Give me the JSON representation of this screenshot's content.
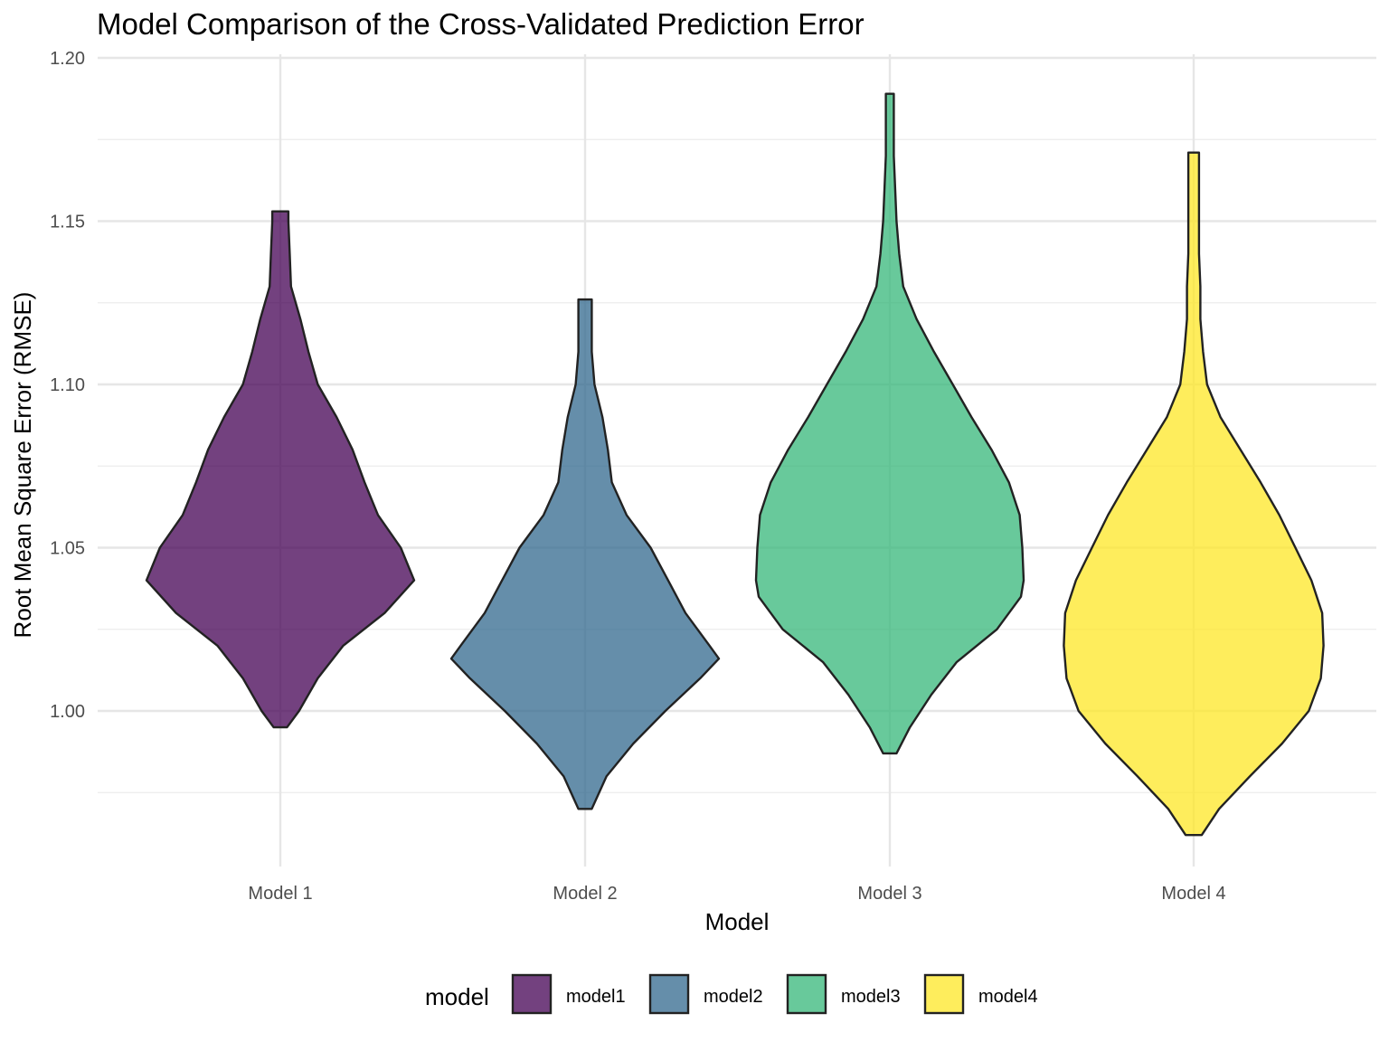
{
  "chart_data": {
    "type": "violin",
    "title": "Model Comparison of the Cross-Validated Prediction Error",
    "xlabel": "Model",
    "ylabel": "Root Mean Square Error (RMSE)",
    "categories": [
      "Model 1",
      "Model 2",
      "Model 3",
      "Model 4"
    ],
    "ylim": [
      0.953,
      1.2
    ],
    "y_ticks": [
      1.0,
      1.05,
      1.1,
      1.15,
      1.2
    ],
    "y_tick_labels": [
      "1.00",
      "1.05",
      "1.10",
      "1.15",
      "1.20"
    ],
    "grid": true,
    "legend": {
      "title": "model",
      "position": "bottom",
      "entries": [
        "model1",
        "model2",
        "model3",
        "model4"
      ]
    },
    "series": [
      {
        "name": "model1",
        "category": "Model 1",
        "color": "#440154",
        "min": 0.995,
        "max": 1.153,
        "profile": [
          [
            0.995,
            0.05
          ],
          [
            1.0,
            0.14
          ],
          [
            1.01,
            0.28
          ],
          [
            1.02,
            0.47
          ],
          [
            1.03,
            0.78
          ],
          [
            1.04,
            1.0
          ],
          [
            1.05,
            0.9
          ],
          [
            1.06,
            0.73
          ],
          [
            1.07,
            0.63
          ],
          [
            1.08,
            0.54
          ],
          [
            1.09,
            0.42
          ],
          [
            1.1,
            0.28
          ],
          [
            1.11,
            0.21
          ],
          [
            1.12,
            0.15
          ],
          [
            1.13,
            0.08
          ],
          [
            1.14,
            0.07
          ],
          [
            1.15,
            0.06
          ],
          [
            1.153,
            0.06
          ]
        ]
      },
      {
        "name": "model2",
        "category": "Model 2",
        "color": "#31688E",
        "min": 0.97,
        "max": 1.126,
        "profile": [
          [
            0.97,
            0.05
          ],
          [
            0.98,
            0.16
          ],
          [
            0.99,
            0.36
          ],
          [
            1.0,
            0.6
          ],
          [
            1.01,
            0.86
          ],
          [
            1.016,
            1.0
          ],
          [
            1.02,
            0.93
          ],
          [
            1.03,
            0.75
          ],
          [
            1.04,
            0.62
          ],
          [
            1.05,
            0.49
          ],
          [
            1.06,
            0.31
          ],
          [
            1.07,
            0.2
          ],
          [
            1.08,
            0.17
          ],
          [
            1.09,
            0.13
          ],
          [
            1.1,
            0.07
          ],
          [
            1.11,
            0.05
          ],
          [
            1.12,
            0.05
          ],
          [
            1.126,
            0.05
          ]
        ]
      },
      {
        "name": "model3",
        "category": "Model 3",
        "color": "#35B779",
        "min": 0.987,
        "max": 1.189,
        "profile": [
          [
            0.987,
            0.05
          ],
          [
            0.995,
            0.15
          ],
          [
            1.005,
            0.31
          ],
          [
            1.015,
            0.5
          ],
          [
            1.025,
            0.8
          ],
          [
            1.035,
            0.98
          ],
          [
            1.04,
            1.0
          ],
          [
            1.05,
            0.99
          ],
          [
            1.06,
            0.97
          ],
          [
            1.07,
            0.89
          ],
          [
            1.08,
            0.76
          ],
          [
            1.09,
            0.61
          ],
          [
            1.1,
            0.47
          ],
          [
            1.11,
            0.33
          ],
          [
            1.12,
            0.2
          ],
          [
            1.13,
            0.1
          ],
          [
            1.14,
            0.07
          ],
          [
            1.15,
            0.05
          ],
          [
            1.16,
            0.04
          ],
          [
            1.17,
            0.03
          ],
          [
            1.18,
            0.03
          ],
          [
            1.189,
            0.03
          ]
        ]
      },
      {
        "name": "model4",
        "category": "Model 4",
        "color": "#FDE725",
        "min": 0.962,
        "max": 1.171,
        "profile": [
          [
            0.962,
            0.06
          ],
          [
            0.97,
            0.19
          ],
          [
            0.98,
            0.42
          ],
          [
            0.99,
            0.66
          ],
          [
            1.0,
            0.86
          ],
          [
            1.01,
            0.95
          ],
          [
            1.02,
            0.97
          ],
          [
            1.03,
            0.96
          ],
          [
            1.04,
            0.88
          ],
          [
            1.05,
            0.76
          ],
          [
            1.06,
            0.64
          ],
          [
            1.07,
            0.5
          ],
          [
            1.08,
            0.35
          ],
          [
            1.09,
            0.2
          ],
          [
            1.1,
            0.1
          ],
          [
            1.11,
            0.07
          ],
          [
            1.12,
            0.05
          ],
          [
            1.13,
            0.05
          ],
          [
            1.14,
            0.04
          ],
          [
            1.15,
            0.04
          ],
          [
            1.16,
            0.04
          ],
          [
            1.171,
            0.04
          ]
        ]
      }
    ]
  }
}
